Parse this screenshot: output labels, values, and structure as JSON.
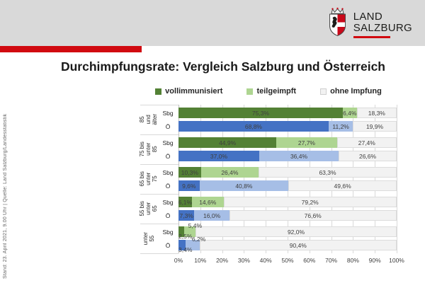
{
  "header": {
    "logo": {
      "line1": "LAND",
      "line2": "SALZBURG"
    }
  },
  "title": "Durchimpfungsrate: Vergleich Salzburg und Österreich",
  "sidenote": "Stand: 23. April 2021, 9.00 Uhr | Quelle: Land Salzburg/Landesstatistik",
  "colors": {
    "accent_red": "#d10a10",
    "header_gray": "#d9d9d9",
    "grid": "#d9d9d9",
    "label_text": "#3f3f3f",
    "sbg": [
      "#538135",
      "#aed591",
      "#f2f2f2"
    ],
    "oe": [
      "#4472c4",
      "#a6bee6",
      "#f2f2f2"
    ]
  },
  "chart_data": {
    "type": "bar",
    "stacked": true,
    "orientation": "horizontal",
    "title": "Durchimpfungsrate: Vergleich Salzburg und Österreich",
    "xlabel": "",
    "ylabel": "",
    "xlim": [
      0,
      100
    ],
    "grid": true,
    "legend_position": "top",
    "legend": [
      "vollimmunisiert",
      "teilgeimpft",
      "ohne Impfung"
    ],
    "x_ticks": [
      "0%",
      "10%",
      "20%",
      "30%",
      "40%",
      "50%",
      "60%",
      "70%",
      "80%",
      "90%",
      "100%"
    ],
    "series_names": [
      "vollimmunisiert",
      "teilgeimpft",
      "ohne Impfung"
    ],
    "groups": [
      {
        "label": "85 und älter",
        "rows": [
          {
            "region": "Sbg",
            "palette": "sbg",
            "values": [
              75.3,
              6.4,
              18.3
            ],
            "labels": [
              "75,3%",
              "6,4%",
              "18,3%"
            ],
            "label_pos": [
              "in",
              "in",
              "in"
            ]
          },
          {
            "region": "Ö",
            "palette": "oe",
            "values": [
              68.8,
              11.2,
              19.9
            ],
            "labels": [
              "68,8%",
              "11,2%",
              "19,9%"
            ],
            "label_pos": [
              "in",
              "in",
              "in"
            ]
          }
        ]
      },
      {
        "label": "75 bis unter 85",
        "rows": [
          {
            "region": "Sbg",
            "palette": "sbg",
            "values": [
              44.9,
              27.7,
              27.4
            ],
            "labels": [
              "44,9%",
              "27,7%",
              "27,4%"
            ],
            "label_pos": [
              "in",
              "in",
              "in"
            ]
          },
          {
            "region": "Ö",
            "palette": "oe",
            "values": [
              37.0,
              36.4,
              26.6
            ],
            "labels": [
              "37,0%",
              "36,4%",
              "26,6%"
            ],
            "label_pos": [
              "in",
              "in",
              "in"
            ]
          }
        ]
      },
      {
        "label": "65 bis unter 75",
        "rows": [
          {
            "region": "Sbg",
            "palette": "sbg",
            "values": [
              10.3,
              26.4,
              63.3
            ],
            "labels": [
              "10,3%",
              "26,4%",
              "63,3%"
            ],
            "label_pos": [
              "in",
              "in",
              "in"
            ]
          },
          {
            "region": "Ö",
            "palette": "oe",
            "values": [
              9.6,
              40.8,
              49.6
            ],
            "labels": [
              "9,6%",
              "40,8%",
              "49,6%"
            ],
            "label_pos": [
              "in",
              "in",
              "in"
            ]
          }
        ]
      },
      {
        "label": "55 bis unter 65",
        "rows": [
          {
            "region": "Sbg",
            "palette": "sbg",
            "values": [
              6.1,
              14.6,
              79.2
            ],
            "labels": [
              "6,1%",
              "14,6%",
              "79,2%"
            ],
            "label_pos": [
              "in",
              "in",
              "in"
            ]
          },
          {
            "region": "Ö",
            "palette": "oe",
            "values": [
              7.3,
              16.0,
              76.6
            ],
            "labels": [
              "7,3%",
              "16,0%",
              "76,6%"
            ],
            "label_pos": [
              "in",
              "in",
              "in"
            ]
          }
        ]
      },
      {
        "label": "unter 55",
        "rows": [
          {
            "region": "Sbg",
            "palette": "sbg",
            "values": [
              2.5,
              5.4,
              92.0
            ],
            "labels": [
              "2,5%",
              "5,4%",
              "92,0%"
            ],
            "label_pos": [
              "below",
              "above",
              "in"
            ]
          },
          {
            "region": "Ö",
            "palette": "oe",
            "values": [
              3.4,
              6.2,
              90.4
            ],
            "labels": [
              "3,4%",
              "6,2%",
              "90,4%"
            ],
            "label_pos": [
              "below",
              "above",
              "in"
            ]
          }
        ]
      }
    ]
  }
}
